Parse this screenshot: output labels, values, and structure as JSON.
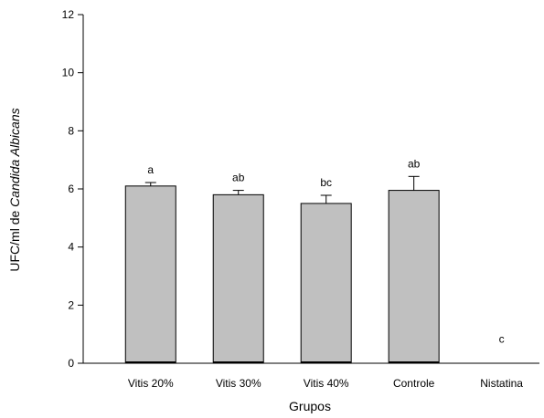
{
  "chart_data": {
    "type": "bar",
    "xlabel": "Grupos",
    "ylabel_prefix": "UFC/ml de ",
    "ylabel_italic": "Candida Albicans",
    "ylim": [
      0,
      12
    ],
    "yticks": [
      0,
      2,
      4,
      6,
      8,
      10,
      12
    ],
    "categories": [
      "Vitis 20%",
      "Vitis 30%",
      "Vitis 40%",
      "Controle",
      "Nistatina"
    ],
    "values": [
      6.1,
      5.8,
      5.5,
      5.95,
      0
    ],
    "errors": [
      0.12,
      0.15,
      0.28,
      0.48,
      0
    ],
    "significance_labels": [
      "a",
      "ab",
      "bc",
      "ab",
      "c"
    ],
    "bar_color": "#c0c0c0",
    "grid": false
  }
}
